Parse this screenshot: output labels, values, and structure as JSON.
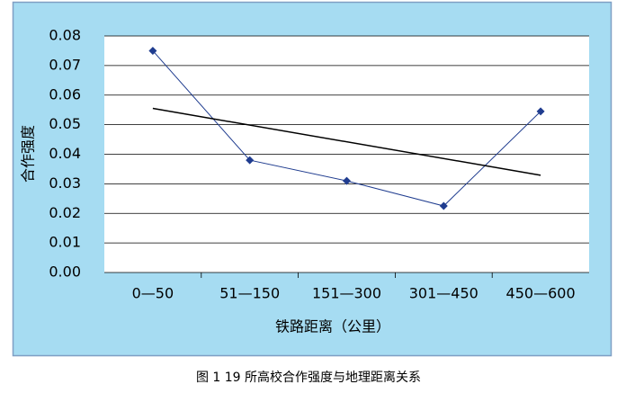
{
  "chart_data": {
    "type": "line",
    "y_label": "合作强度",
    "x_label": "铁路距离（公里）",
    "caption": "图 1  19 所高校合作强度与地理距离关系",
    "categories": [
      "0—50",
      "51—150",
      "151—300",
      "301—450",
      "450—600"
    ],
    "series": [
      {
        "color": "#1f3c8f",
        "values": [
          0.075,
          0.038,
          0.031,
          0.0225,
          0.0545
        ]
      }
    ],
    "trend_line": {
      "color": "#000000",
      "values": [
        0.0555,
        0.0329
      ]
    },
    "ylim": [
      0,
      0.08
    ],
    "yticks": [
      {
        "value": 0,
        "label": "0.00"
      },
      0.01,
      0.02,
      0.03,
      0.04,
      0.05,
      0.06,
      0.07,
      0.08
    ],
    "grid": true
  }
}
